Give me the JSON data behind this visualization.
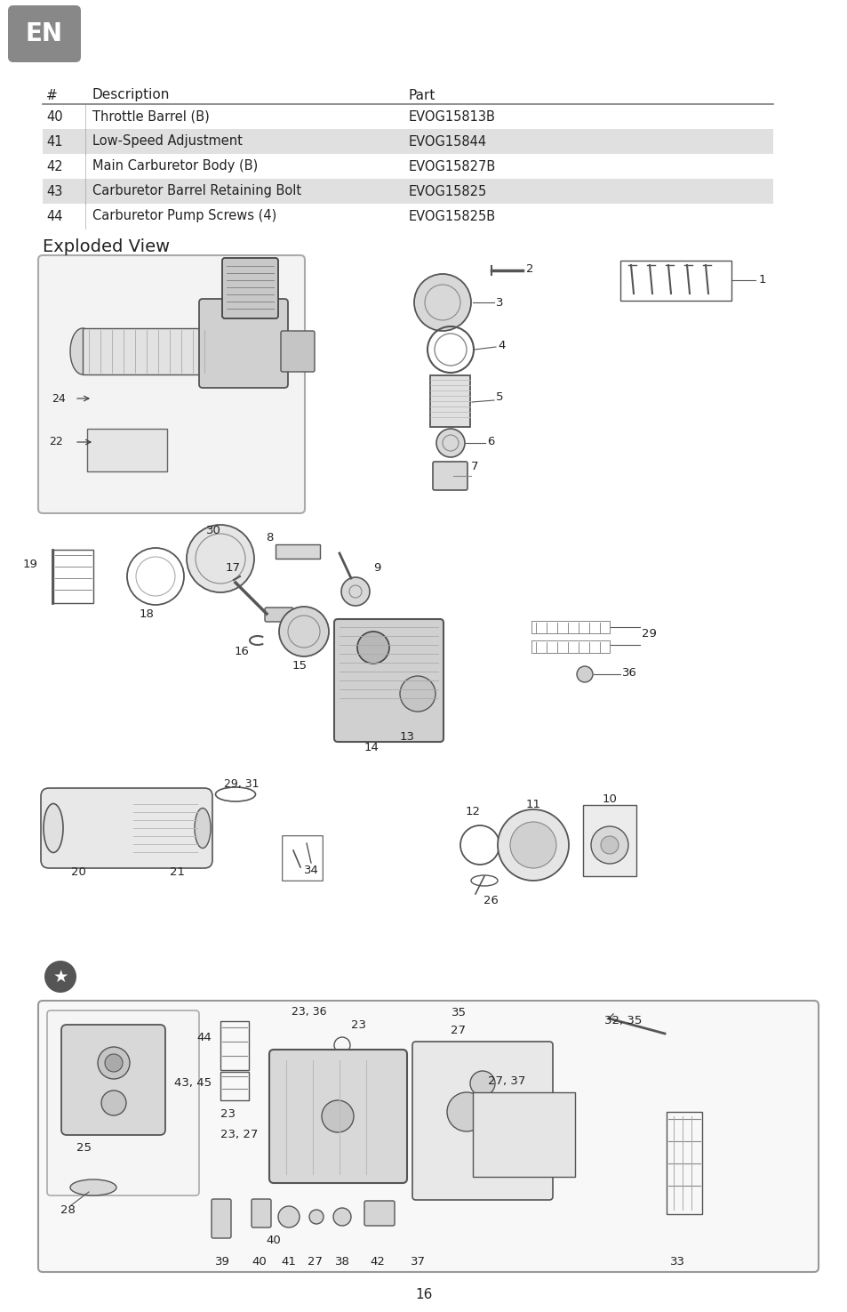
{
  "page_number": "16",
  "badge_bg": "#888888",
  "badge_text": "EN",
  "badge_text_color": "#ffffff",
  "table_header_hash": "#",
  "table_header_desc": "Description",
  "table_header_part": "Part",
  "table_rows": [
    {
      "num": "40",
      "desc": "Throttle Barrel (B)",
      "part": "EVOG15813B",
      "shaded": false
    },
    {
      "num": "41",
      "desc": "Low-Speed Adjustment",
      "part": "EVOG15844",
      "shaded": true
    },
    {
      "num": "42",
      "desc": "Main Carburetor Body (B)",
      "part": "EVOG15827B",
      "shaded": false
    },
    {
      "num": "43",
      "desc": "Carburetor Barrel Retaining Bolt",
      "part": "EVOG15825",
      "shaded": true
    },
    {
      "num": "44",
      "desc": "Carburetor Pump Screws (4)",
      "part": "EVOG15825B",
      "shaded": false
    }
  ],
  "row_shaded_color": "#e0e0e0",
  "exploded_view_title": "Exploded View",
  "background_color": "#ffffff",
  "text_color": "#222222",
  "line_color": "#888888"
}
